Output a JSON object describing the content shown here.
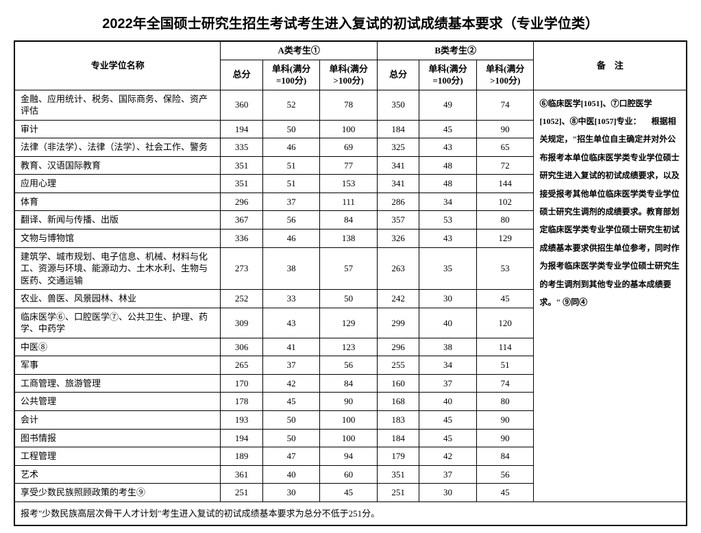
{
  "title": "2022年全国硕士研究生招生考试考生进入复试的初试成绩基本要求（专业学位类）",
  "headers": {
    "name": "专业学位名称",
    "groupA": "A类考生①",
    "groupB": "B类考生②",
    "remark": "备　注",
    "total": "总分",
    "sub100": "单科(满分=100分)",
    "subover": "单科(满分>100分)"
  },
  "rows": [
    {
      "name": "金融、应用统计、税务、国际商务、保险、资产评估",
      "a": [
        360,
        52,
        78
      ],
      "b": [
        350,
        49,
        74
      ]
    },
    {
      "name": "审计",
      "a": [
        194,
        50,
        100
      ],
      "b": [
        184,
        45,
        90
      ]
    },
    {
      "name": "法律（非法学）、法律（法学）、社会工作、警务",
      "a": [
        335,
        46,
        69
      ],
      "b": [
        325,
        43,
        65
      ]
    },
    {
      "name": "教育、汉语国际教育",
      "a": [
        351,
        51,
        77
      ],
      "b": [
        341,
        48,
        72
      ]
    },
    {
      "name": "应用心理",
      "a": [
        351,
        51,
        153
      ],
      "b": [
        341,
        48,
        144
      ]
    },
    {
      "name": "体育",
      "a": [
        296,
        37,
        111
      ],
      "b": [
        286,
        34,
        102
      ]
    },
    {
      "name": "翻译、新闻与传播、出版",
      "a": [
        367,
        56,
        84
      ],
      "b": [
        357,
        53,
        80
      ]
    },
    {
      "name": "文物与博物馆",
      "a": [
        336,
        46,
        138
      ],
      "b": [
        326,
        43,
        129
      ]
    },
    {
      "name": "建筑学、城市规划、电子信息、机械、材料与化工、资源与环境、能源动力、土木水利、生物与医药、交通运输",
      "a": [
        273,
        38,
        57
      ],
      "b": [
        263,
        35,
        53
      ]
    },
    {
      "name": "农业、兽医、风景园林、林业",
      "a": [
        252,
        33,
        50
      ],
      "b": [
        242,
        30,
        45
      ]
    },
    {
      "name": "临床医学⑥、口腔医学⑦、公共卫生、护理、药学、中药学",
      "a": [
        309,
        43,
        129
      ],
      "b": [
        299,
        40,
        120
      ]
    },
    {
      "name": "中医⑧",
      "a": [
        306,
        41,
        123
      ],
      "b": [
        296,
        38,
        114
      ]
    },
    {
      "name": "军事",
      "a": [
        265,
        37,
        56
      ],
      "b": [
        255,
        34,
        51
      ]
    },
    {
      "name": "工商管理、旅游管理",
      "a": [
        170,
        42,
        84
      ],
      "b": [
        160,
        37,
        74
      ]
    },
    {
      "name": "公共管理",
      "a": [
        178,
        45,
        90
      ],
      "b": [
        168,
        40,
        80
      ]
    },
    {
      "name": "会计",
      "a": [
        193,
        50,
        100
      ],
      "b": [
        183,
        45,
        90
      ]
    },
    {
      "name": "图书情报",
      "a": [
        194,
        50,
        100
      ],
      "b": [
        184,
        45,
        90
      ]
    },
    {
      "name": "工程管理",
      "a": [
        189,
        47,
        94
      ],
      "b": [
        179,
        42,
        84
      ]
    },
    {
      "name": "艺术",
      "a": [
        361,
        40,
        60
      ],
      "b": [
        351,
        37,
        56
      ]
    },
    {
      "name": "享受少数民族照顾政策的考生⑨",
      "a": [
        251,
        30,
        45
      ],
      "b": [
        251,
        30,
        45
      ]
    }
  ],
  "notes": "⑥临床医学[1051]、⑦口腔医学[1052]、⑧中医[1057]专业：\n　根据相关规定，\"招生单位自主确定并对外公布报考本单位临床医学类专业学位硕士研究生进入复试的初试成绩要求，以及接受报考其他单位临床医学类专业学位硕士研究生调剂的成绩要求。教育部划定临床医学类专业学位硕士研究生初试成绩基本要求供招生单位参考，同时作为报考临床医学类专业学位硕士研究生的考生调剂到其他专业的基本成绩要求。\"\n\n⑨同④",
  "footer": "报考\"少数民族高层次骨干人才计划\"考生进入复试的初试成绩基本要求为总分不低于251分。"
}
